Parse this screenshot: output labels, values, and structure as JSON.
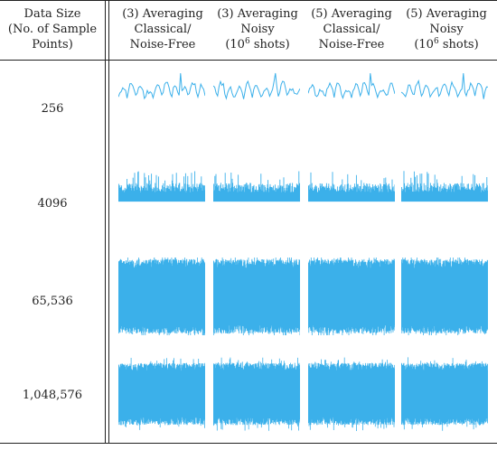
{
  "table": {
    "first_header": [
      "Data Size",
      "(No. of Sample",
      "Points)"
    ],
    "columns": [
      {
        "lines": [
          "(3) Averaging",
          "Classical/",
          "Noise-Free"
        ],
        "seed": 11
      },
      {
        "lines": [
          "(3) Averaging",
          "Noisy",
          "(10",
          "6",
          " shots)"
        ],
        "seed": 23
      },
      {
        "lines": [
          "(5) Averaging",
          "Classical/",
          "Noise-Free"
        ],
        "seed": 37
      },
      {
        "lines": [
          "(5) Averaging",
          "Noisy",
          "(10",
          "6",
          " shots)"
        ],
        "seed": 51
      }
    ],
    "rows": [
      {
        "label": "256",
        "sample_points": 256
      },
      {
        "label": "4096",
        "sample_points": 4096
      },
      {
        "label": "65,536",
        "sample_points": 65536
      },
      {
        "label": "1,048,576",
        "sample_points": 1048576
      }
    ],
    "waveform_color": "#3bb0ea"
  }
}
